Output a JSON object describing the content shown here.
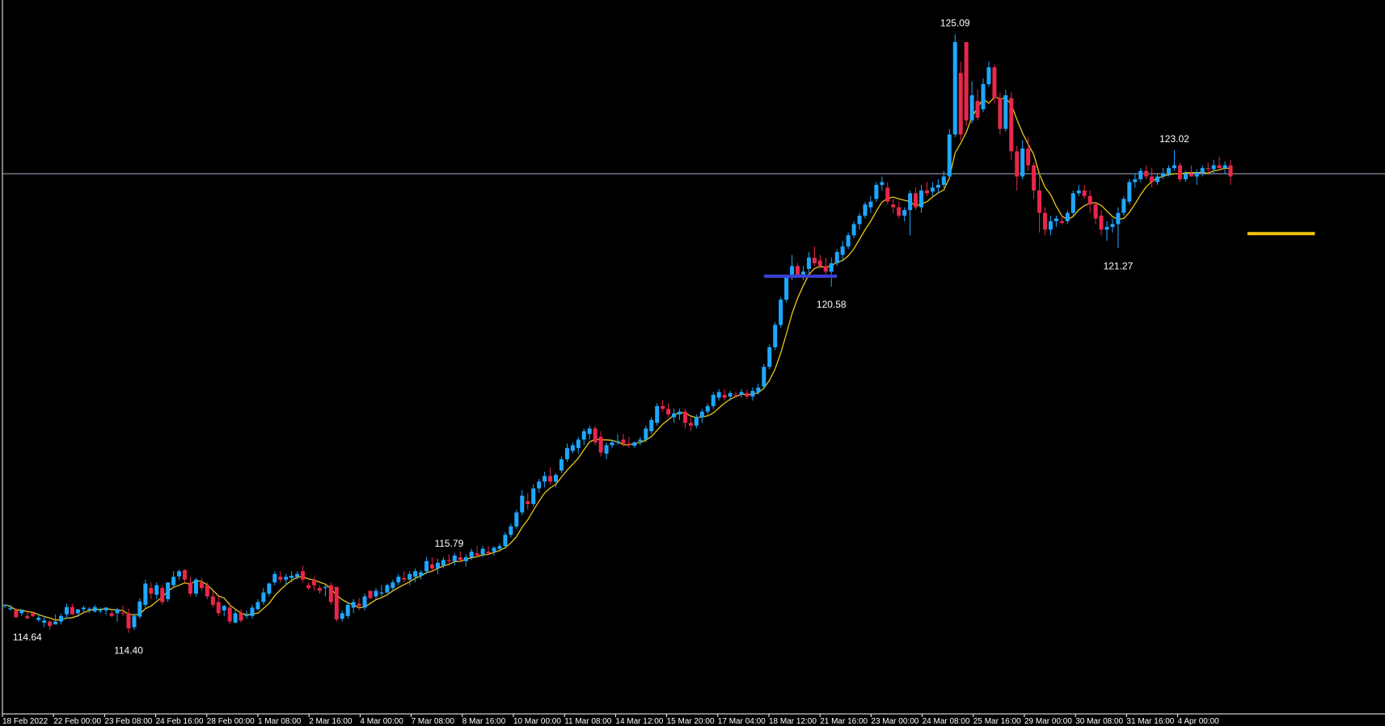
{
  "chart_data": {
    "type": "candlestick",
    "series_count": 1,
    "colors": {
      "background": "#000000",
      "bull": "#1ea7ff",
      "bear": "#e8274a",
      "moving_average": "#e8c619",
      "reference_line": "#a8b4c6",
      "support_blue": "#3b3fcf",
      "support_yellow": "#f2c40f",
      "axis": "#ffffff"
    },
    "y_range": [
      113.5,
      125.5
    ],
    "x_tick_labels": [
      "18 Feb 2022",
      "22 Feb 00:00",
      "23 Feb 08:00",
      "24 Feb 16:00",
      "28 Feb 00:00",
      "1 Mar 08:00",
      "2 Mar 16:00",
      "4 Mar 00:00",
      "7 Mar 08:00",
      "8 Mar 16:00",
      "10 Mar 00:00",
      "11 Mar 08:00",
      "14 Mar 12:00",
      "15 Mar 20:00",
      "17 Mar 04:00",
      "18 Mar 12:00",
      "21 Mar 16:00",
      "23 Mar 00:00",
      "24 Mar 08:00",
      "25 Mar 16:00",
      "29 Mar 00:00",
      "30 Mar 08:00",
      "31 Mar 16:00",
      "4 Apr 00:00"
    ],
    "reference_level": 122.6,
    "annotations": [
      {
        "label": "125.09",
        "value": 125.09
      },
      {
        "label": "114.40",
        "value": 114.4
      },
      {
        "label": "115.79",
        "value": 115.79
      },
      {
        "label": "114.64",
        "value": 114.64
      },
      {
        "label": "120.58",
        "value": 120.58
      },
      {
        "label": "121.27",
        "value": 121.27
      },
      {
        "label": "123.02",
        "value": 123.02
      }
    ],
    "support_lines": [
      {
        "value": 120.77,
        "color_key": "support_blue",
        "from_index": 135,
        "to_index": 148
      },
      {
        "value": 121.53,
        "color_key": "support_yellow",
        "from_index": 221,
        "to_index": 233
      }
    ],
    "ma_period": 6,
    "ohlc": [
      [
        114.88,
        114.9,
        114.84,
        114.9
      ],
      [
        114.82,
        114.9,
        114.8,
        114.84
      ],
      [
        114.8,
        114.84,
        114.66,
        114.68
      ],
      [
        114.75,
        114.82,
        114.7,
        114.81
      ],
      [
        114.7,
        114.76,
        114.64,
        114.66
      ],
      [
        114.75,
        114.77,
        114.68,
        114.7
      ],
      [
        114.63,
        114.73,
        114.6,
        114.67
      ],
      [
        114.58,
        114.7,
        114.5,
        114.62
      ],
      [
        114.6,
        114.63,
        114.45,
        114.52
      ],
      [
        114.55,
        114.73,
        114.55,
        114.6
      ],
      [
        114.6,
        114.74,
        114.55,
        114.7
      ],
      [
        114.73,
        114.92,
        114.65,
        114.86
      ],
      [
        114.86,
        114.92,
        114.72,
        114.73
      ],
      [
        114.75,
        114.82,
        114.68,
        114.82
      ],
      [
        114.82,
        114.89,
        114.75,
        114.85
      ],
      [
        114.81,
        114.86,
        114.75,
        114.83
      ],
      [
        114.78,
        114.9,
        114.76,
        114.86
      ],
      [
        114.8,
        114.85,
        114.75,
        114.8
      ],
      [
        114.8,
        114.86,
        114.72,
        114.85
      ],
      [
        114.75,
        114.8,
        114.68,
        114.7
      ],
      [
        114.75,
        114.85,
        114.6,
        114.82
      ],
      [
        114.76,
        114.89,
        114.7,
        114.75
      ],
      [
        114.75,
        114.83,
        114.4,
        114.48
      ],
      [
        114.5,
        114.75,
        114.45,
        114.7
      ],
      [
        114.69,
        115.02,
        114.65,
        114.96
      ],
      [
        114.9,
        115.35,
        114.85,
        115.28
      ],
      [
        115.2,
        115.3,
        115.0,
        115.1
      ],
      [
        115.08,
        115.3,
        115.0,
        115.25
      ],
      [
        115.2,
        115.25,
        114.9,
        114.95
      ],
      [
        115.0,
        115.3,
        114.95,
        115.3
      ],
      [
        115.25,
        115.5,
        115.2,
        115.4
      ],
      [
        115.41,
        115.53,
        115.34,
        115.5
      ],
      [
        115.52,
        115.54,
        115.3,
        115.35
      ],
      [
        115.3,
        115.4,
        115.05,
        115.1
      ],
      [
        115.1,
        115.38,
        115.05,
        115.35
      ],
      [
        115.3,
        115.38,
        115.15,
        115.2
      ],
      [
        115.25,
        115.3,
        115.0,
        115.05
      ],
      [
        115.05,
        115.15,
        114.85,
        114.9
      ],
      [
        114.95,
        115.05,
        114.7,
        114.75
      ],
      [
        114.8,
        114.9,
        114.7,
        114.88
      ],
      [
        114.85,
        114.95,
        114.55,
        114.6
      ],
      [
        114.58,
        114.82,
        114.57,
        114.75
      ],
      [
        114.75,
        114.82,
        114.58,
        114.62
      ],
      [
        114.7,
        114.8,
        114.65,
        114.72
      ],
      [
        114.7,
        114.9,
        114.65,
        114.85
      ],
      [
        114.82,
        115.0,
        114.8,
        114.95
      ],
      [
        114.95,
        115.2,
        114.9,
        115.12
      ],
      [
        115.1,
        115.3,
        115.05,
        115.28
      ],
      [
        115.3,
        115.5,
        115.25,
        115.45
      ],
      [
        115.4,
        115.5,
        115.3,
        115.35
      ],
      [
        115.35,
        115.45,
        115.25,
        115.4
      ],
      [
        115.38,
        115.5,
        115.3,
        115.42
      ],
      [
        115.4,
        115.5,
        115.35,
        115.45
      ],
      [
        115.5,
        115.6,
        115.3,
        115.35
      ],
      [
        115.25,
        115.3,
        115.17,
        115.2
      ],
      [
        115.35,
        115.4,
        115.15,
        115.25
      ],
      [
        115.2,
        115.25,
        115.1,
        115.15
      ],
      [
        115.2,
        115.28,
        115.05,
        115.22
      ],
      [
        115.25,
        115.3,
        114.9,
        114.95
      ],
      [
        115.22,
        115.22,
        114.6,
        114.64
      ],
      [
        114.65,
        114.8,
        114.6,
        114.75
      ],
      [
        114.7,
        114.95,
        114.65,
        114.9
      ],
      [
        114.85,
        115.0,
        114.75,
        114.95
      ],
      [
        114.92,
        115.02,
        114.8,
        114.88
      ],
      [
        114.85,
        115.1,
        114.8,
        115.05
      ],
      [
        115.15,
        115.15,
        115.0,
        115.02
      ],
      [
        115.05,
        115.2,
        115.0,
        115.15
      ],
      [
        115.1,
        115.25,
        115.05,
        115.12
      ],
      [
        115.12,
        115.28,
        115.1,
        115.25
      ],
      [
        115.2,
        115.35,
        115.15,
        115.3
      ],
      [
        115.3,
        115.45,
        115.25,
        115.4
      ],
      [
        115.38,
        115.5,
        115.3,
        115.35
      ],
      [
        115.35,
        115.5,
        115.25,
        115.45
      ],
      [
        115.4,
        115.55,
        115.3,
        115.5
      ],
      [
        115.42,
        115.52,
        115.35,
        115.48
      ],
      [
        115.5,
        115.75,
        115.45,
        115.68
      ],
      [
        115.62,
        115.75,
        115.5,
        115.55
      ],
      [
        115.55,
        115.72,
        115.45,
        115.65
      ],
      [
        115.6,
        115.75,
        115.55,
        115.7
      ],
      [
        115.7,
        115.8,
        115.6,
        115.68
      ],
      [
        115.68,
        115.82,
        115.6,
        115.78
      ],
      [
        115.75,
        115.85,
        115.65,
        115.7
      ],
      [
        115.68,
        115.8,
        115.58,
        115.75
      ],
      [
        115.75,
        115.9,
        115.7,
        115.85
      ],
      [
        115.82,
        115.95,
        115.75,
        115.78
      ],
      [
        115.8,
        115.95,
        115.75,
        115.9
      ],
      [
        115.85,
        115.95,
        115.8,
        115.82
      ],
      [
        115.85,
        115.95,
        115.78,
        115.92
      ],
      [
        115.9,
        116.0,
        115.85,
        115.95
      ],
      [
        115.95,
        116.2,
        115.9,
        116.15
      ],
      [
        116.15,
        116.35,
        116.1,
        116.3
      ],
      [
        116.3,
        116.6,
        116.25,
        116.55
      ],
      [
        116.55,
        116.95,
        116.5,
        116.85
      ],
      [
        116.75,
        116.9,
        116.6,
        116.7
      ],
      [
        116.7,
        117.05,
        116.65,
        116.98
      ],
      [
        116.98,
        117.15,
        116.9,
        117.1
      ],
      [
        117.1,
        117.28,
        117.0,
        117.2
      ],
      [
        117.2,
        117.35,
        117.05,
        117.1
      ],
      [
        117.1,
        117.25,
        117.0,
        117.22
      ],
      [
        117.3,
        117.55,
        117.25,
        117.5
      ],
      [
        117.5,
        117.78,
        117.45,
        117.7
      ],
      [
        117.65,
        117.8,
        117.6,
        117.75
      ],
      [
        117.7,
        117.9,
        117.6,
        117.85
      ],
      [
        117.85,
        118.05,
        117.75,
        118.0
      ],
      [
        117.95,
        118.1,
        117.85,
        118.05
      ],
      [
        118.05,
        118.1,
        117.75,
        117.8
      ],
      [
        117.9,
        118.0,
        117.55,
        117.62
      ],
      [
        117.6,
        117.8,
        117.5,
        117.75
      ],
      [
        117.75,
        117.85,
        117.7,
        117.8
      ],
      [
        117.8,
        117.95,
        117.75,
        117.82
      ],
      [
        117.85,
        117.95,
        117.72,
        117.78
      ],
      [
        117.78,
        117.9,
        117.7,
        117.75
      ],
      [
        117.74,
        117.82,
        117.7,
        117.8
      ],
      [
        117.82,
        117.9,
        117.75,
        117.85
      ],
      [
        117.85,
        118.1,
        117.8,
        118.05
      ],
      [
        118.0,
        118.25,
        117.95,
        118.2
      ],
      [
        118.15,
        118.5,
        118.1,
        118.45
      ],
      [
        118.45,
        118.55,
        118.35,
        118.4
      ],
      [
        118.4,
        118.5,
        118.25,
        118.3
      ],
      [
        118.25,
        118.4,
        118.15,
        118.32
      ],
      [
        118.3,
        118.4,
        118.2,
        118.35
      ],
      [
        118.35,
        118.4,
        118.05,
        118.15
      ],
      [
        118.15,
        118.25,
        118.0,
        118.1
      ],
      [
        118.1,
        118.3,
        118.05,
        118.25
      ],
      [
        118.25,
        118.4,
        118.15,
        118.35
      ],
      [
        118.35,
        118.5,
        118.3,
        118.45
      ],
      [
        118.45,
        118.7,
        118.4,
        118.65
      ],
      [
        118.6,
        118.75,
        118.55,
        118.7
      ],
      [
        118.65,
        118.75,
        118.55,
        118.6
      ],
      [
        118.62,
        118.72,
        118.55,
        118.68
      ],
      [
        118.65,
        118.7,
        118.6,
        118.63
      ],
      [
        118.65,
        118.75,
        118.6,
        118.7
      ],
      [
        118.68,
        118.74,
        118.58,
        118.62
      ],
      [
        118.62,
        118.78,
        118.55,
        118.72
      ],
      [
        118.7,
        118.85,
        118.65,
        118.78
      ],
      [
        118.8,
        119.2,
        118.75,
        119.15
      ],
      [
        119.15,
        119.55,
        119.1,
        119.5
      ],
      [
        119.5,
        119.95,
        119.45,
        119.9
      ],
      [
        119.9,
        120.4,
        119.85,
        120.35
      ],
      [
        120.35,
        120.8,
        120.3,
        120.75
      ],
      [
        120.75,
        121.15,
        120.7,
        120.95
      ],
      [
        120.95,
        121.0,
        120.75,
        120.8
      ],
      [
        120.8,
        120.95,
        120.7,
        120.85
      ],
      [
        120.9,
        121.2,
        120.82,
        121.1
      ],
      [
        121.1,
        121.3,
        120.95,
        121.0
      ],
      [
        121.05,
        121.15,
        120.9,
        120.95
      ],
      [
        120.95,
        121.1,
        120.75,
        120.85
      ],
      [
        120.85,
        121.1,
        120.58,
        121.0
      ],
      [
        121.0,
        121.25,
        120.95,
        121.2
      ],
      [
        121.15,
        121.4,
        121.05,
        121.3
      ],
      [
        121.3,
        121.55,
        121.25,
        121.5
      ],
      [
        121.5,
        121.75,
        121.45,
        121.7
      ],
      [
        121.7,
        121.9,
        121.6,
        121.85
      ],
      [
        121.85,
        122.1,
        121.8,
        122.05
      ],
      [
        122.0,
        122.2,
        121.9,
        122.1
      ],
      [
        122.15,
        122.45,
        122.1,
        122.4
      ],
      [
        122.4,
        122.55,
        122.3,
        122.45
      ],
      [
        122.35,
        122.45,
        122.05,
        122.1
      ],
      [
        122.05,
        122.15,
        121.9,
        122.0
      ],
      [
        122.0,
        122.1,
        121.8,
        121.85
      ],
      [
        121.85,
        122.0,
        121.75,
        121.95
      ],
      [
        121.95,
        122.3,
        121.5,
        122.25
      ],
      [
        122.25,
        122.35,
        121.95,
        122.0
      ],
      [
        122.0,
        122.4,
        121.9,
        122.3
      ],
      [
        122.3,
        122.45,
        122.2,
        122.25
      ],
      [
        122.28,
        122.45,
        122.2,
        122.35
      ],
      [
        122.35,
        122.5,
        122.25,
        122.4
      ],
      [
        122.4,
        122.65,
        122.35,
        122.55
      ],
      [
        122.55,
        123.4,
        122.5,
        123.3
      ],
      [
        123.3,
        125.09,
        123.25,
        124.95
      ],
      [
        124.4,
        124.6,
        123.2,
        123.3
      ],
      [
        124.95,
        124.95,
        123.45,
        123.55
      ],
      [
        123.55,
        124.25,
        123.5,
        124.0
      ],
      [
        123.9,
        124.1,
        123.55,
        123.6
      ],
      [
        123.75,
        124.3,
        123.7,
        124.2
      ],
      [
        124.2,
        124.6,
        124.15,
        124.5
      ],
      [
        124.5,
        124.55,
        123.85,
        123.95
      ],
      [
        123.95,
        124.05,
        123.3,
        123.4
      ],
      [
        123.4,
        124.1,
        123.35,
        124.0
      ],
      [
        123.95,
        124.05,
        122.85,
        123.0
      ],
      [
        123.0,
        123.1,
        122.3,
        122.55
      ],
      [
        122.55,
        123.2,
        122.5,
        123.05
      ],
      [
        123.05,
        123.25,
        122.65,
        122.75
      ],
      [
        122.75,
        122.8,
        122.15,
        122.3
      ],
      [
        122.3,
        122.6,
        121.55,
        121.9
      ],
      [
        121.9,
        122.0,
        121.5,
        121.6
      ],
      [
        121.6,
        121.85,
        121.5,
        121.75
      ],
      [
        121.75,
        121.85,
        121.65,
        121.8
      ],
      [
        121.75,
        121.85,
        121.7,
        121.72
      ],
      [
        121.75,
        121.95,
        121.7,
        121.9
      ],
      [
        121.9,
        122.3,
        121.85,
        122.25
      ],
      [
        122.25,
        122.4,
        122.2,
        122.3
      ],
      [
        122.3,
        122.4,
        122.15,
        122.2
      ],
      [
        122.2,
        122.3,
        121.9,
        122.05
      ],
      [
        122.05,
        122.1,
        121.7,
        121.8
      ],
      [
        121.85,
        121.95,
        121.5,
        121.6
      ],
      [
        121.6,
        121.75,
        121.4,
        121.65
      ],
      [
        121.65,
        121.8,
        121.55,
        121.7
      ],
      [
        121.7,
        122.0,
        121.27,
        121.9
      ],
      [
        121.9,
        122.2,
        121.85,
        122.15
      ],
      [
        122.1,
        122.5,
        122.05,
        122.45
      ],
      [
        122.45,
        122.6,
        122.35,
        122.5
      ],
      [
        122.5,
        122.7,
        122.45,
        122.65
      ],
      [
        122.65,
        122.75,
        122.5,
        122.55
      ],
      [
        122.55,
        122.7,
        122.35,
        122.45
      ],
      [
        122.45,
        122.6,
        122.4,
        122.55
      ],
      [
        122.55,
        122.7,
        122.5,
        122.6
      ],
      [
        122.6,
        122.75,
        122.55,
        122.7
      ],
      [
        122.7,
        123.02,
        122.65,
        122.75
      ],
      [
        122.75,
        122.8,
        122.45,
        122.5
      ],
      [
        122.5,
        122.65,
        122.45,
        122.6
      ],
      [
        122.6,
        122.75,
        122.55,
        122.55
      ],
      [
        122.55,
        122.68,
        122.4,
        122.62
      ],
      [
        122.62,
        122.75,
        122.55,
        122.7
      ],
      [
        122.7,
        122.8,
        122.6,
        122.68
      ],
      [
        122.68,
        122.85,
        122.6,
        122.75
      ],
      [
        122.75,
        122.9,
        122.65,
        122.7
      ],
      [
        122.7,
        122.82,
        122.6,
        122.75
      ],
      [
        122.75,
        122.85,
        122.4,
        122.55
      ]
    ]
  }
}
